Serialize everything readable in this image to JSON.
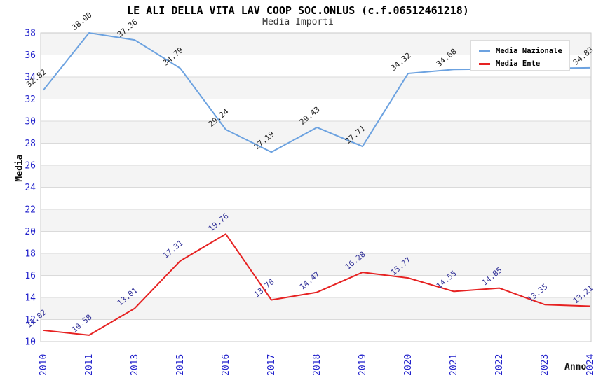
{
  "chart_data": {
    "type": "line",
    "title": "LE ALI DELLA VITA LAV COOP SOC.ONLUS (c.f.06512461218)",
    "subtitle": "Media Importi",
    "xlabel": "Anno",
    "ylabel": "Media",
    "categories": [
      "2010",
      "2011",
      "2013",
      "2015",
      "2016",
      "2017",
      "2018",
      "2019",
      "2020",
      "2021",
      "2022",
      "2023",
      "2024"
    ],
    "ylim": [
      10,
      38
    ],
    "ytick_step": 2,
    "grid": true,
    "alternating_bands": true,
    "legend_position": "top-right",
    "point_label_decimals": 2,
    "series": [
      {
        "name": "Media Nazionale",
        "color": "#6CA2E0",
        "label_color": "#222222",
        "values": [
          32.82,
          38.0,
          37.36,
          34.79,
          29.24,
          27.19,
          29.43,
          27.71,
          34.32,
          34.68,
          null,
          null,
          34.83
        ]
      },
      {
        "name": "Media Ente",
        "color": "#E62222",
        "label_color": "#333399",
        "values": [
          11.02,
          10.58,
          13.01,
          17.31,
          19.76,
          13.78,
          14.47,
          16.28,
          15.77,
          14.55,
          14.85,
          13.35,
          13.21
        ]
      }
    ],
    "colors": {
      "tick_label": "#2222CC",
      "grid": "#DADADA",
      "frame": "#C9C9C9",
      "band": "#F4F4F4",
      "background": "#FFFFFF"
    }
  }
}
